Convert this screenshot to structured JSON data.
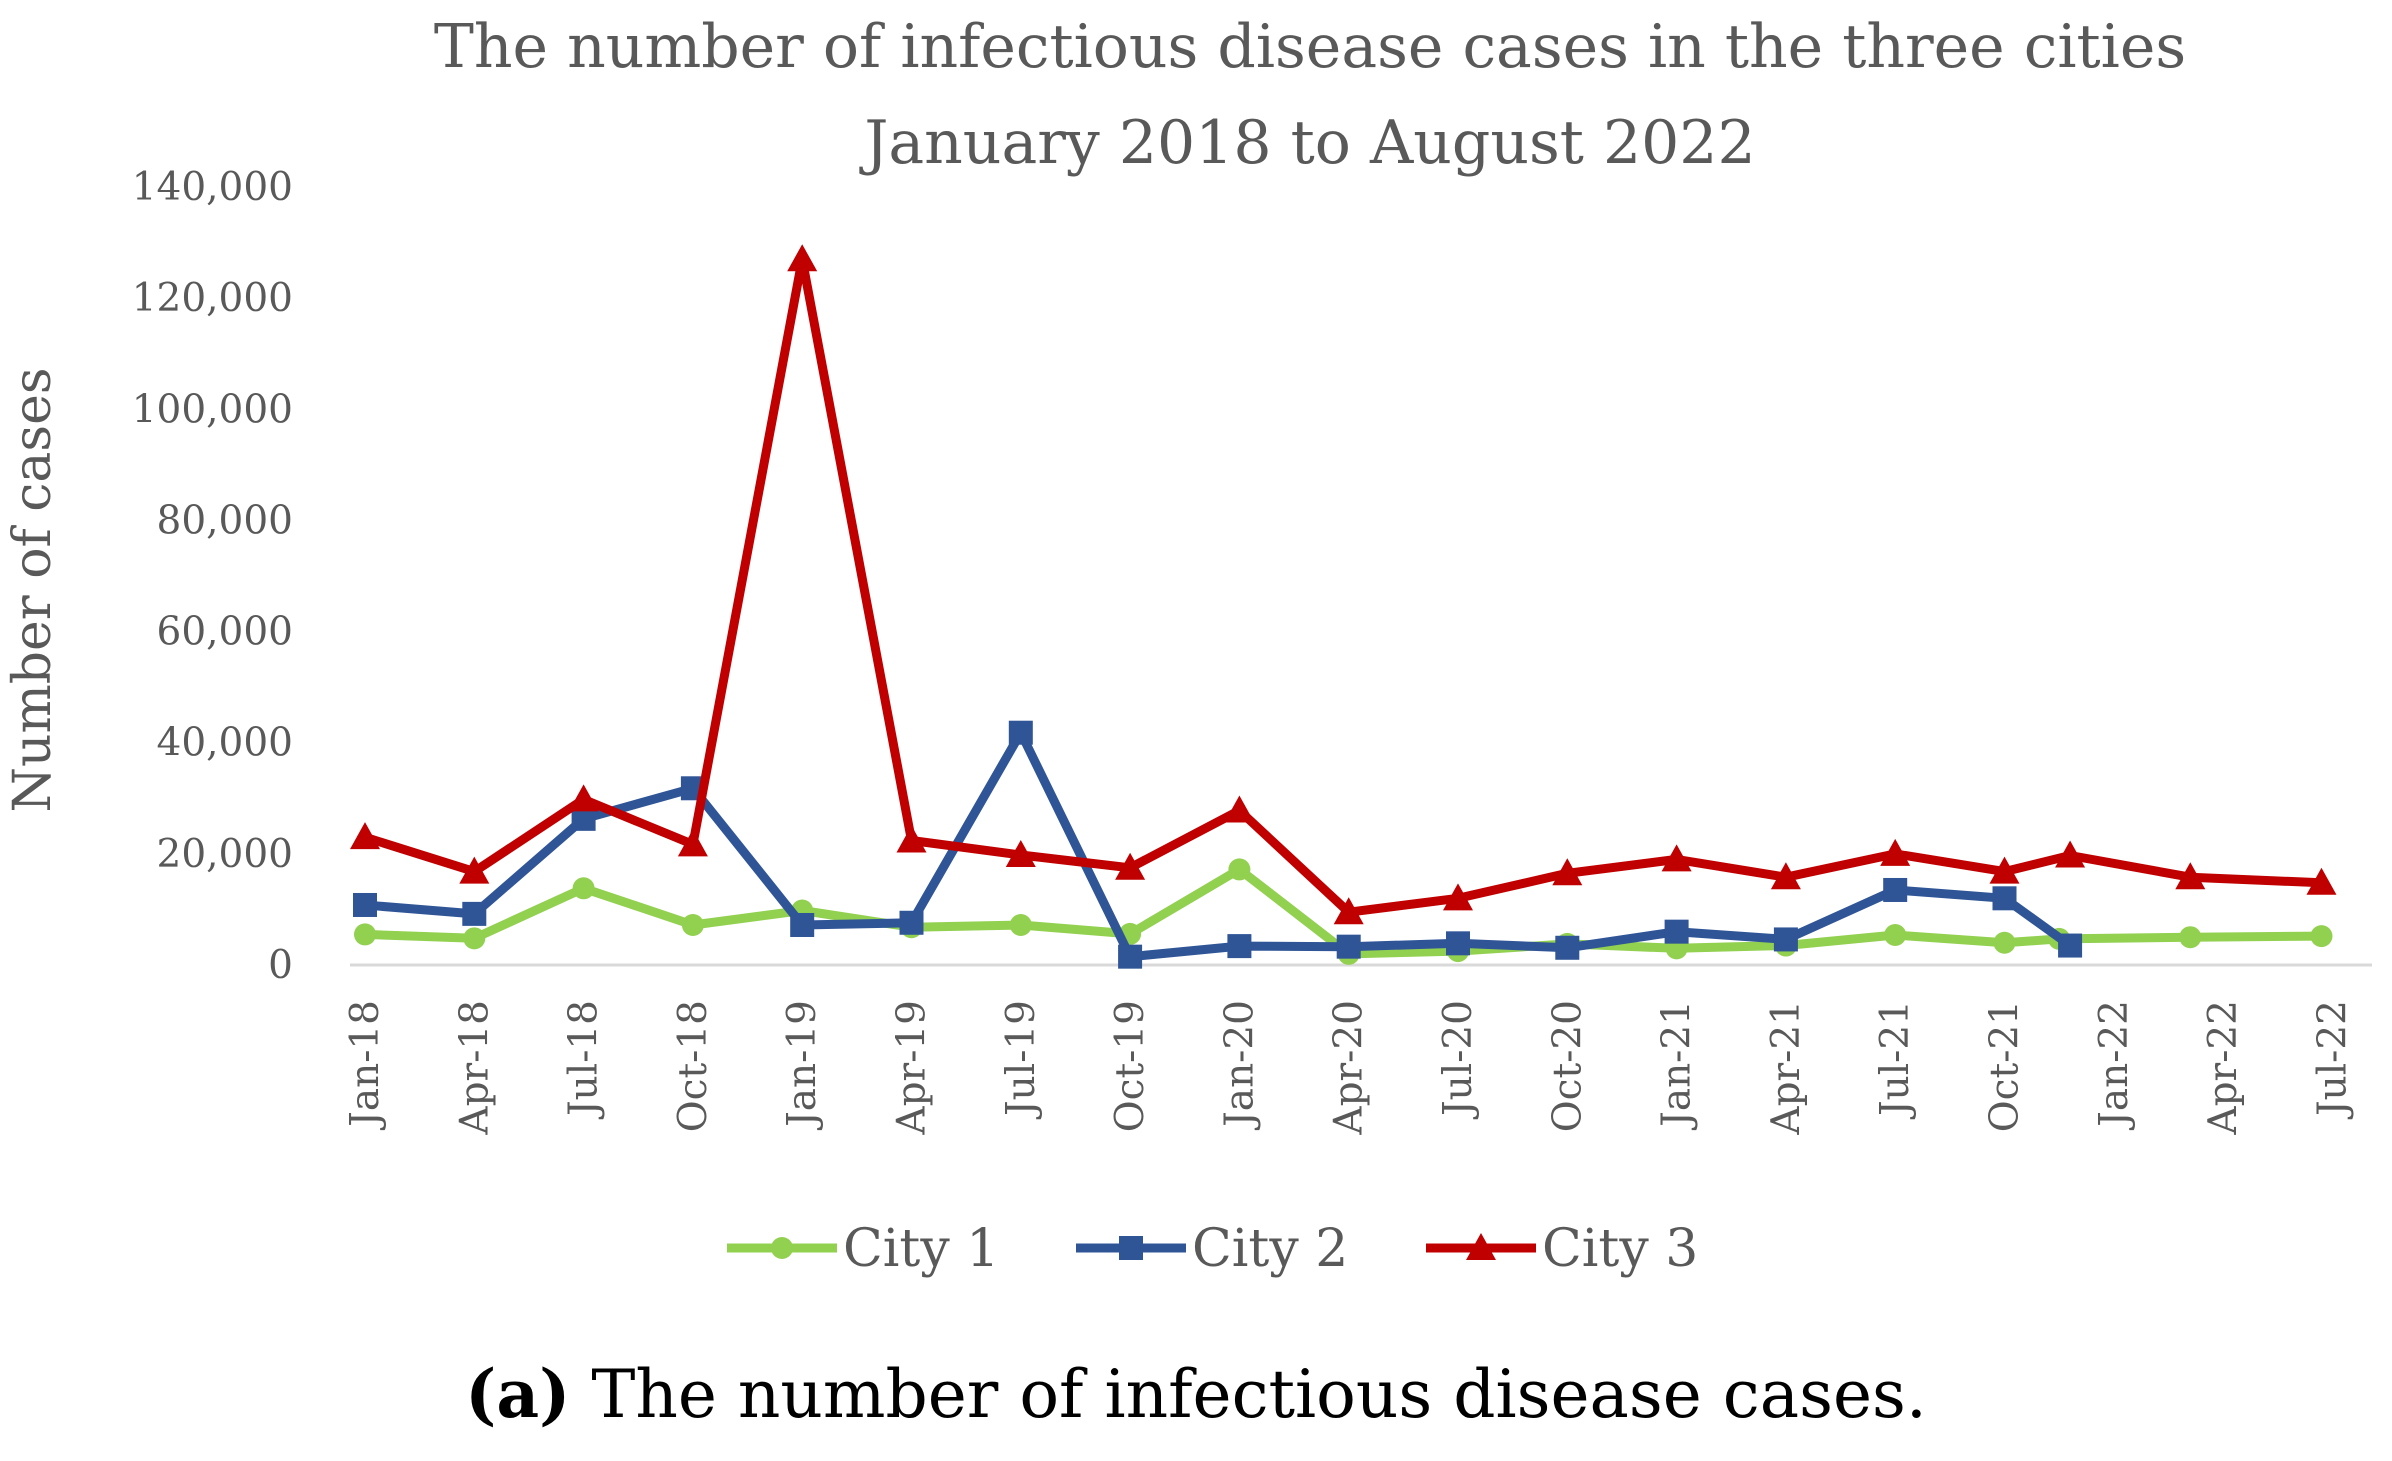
{
  "chart_data": {
    "type": "line",
    "title": [
      "The number of infectious disease cases in the three cities",
      "January 2018 to August 2022"
    ],
    "xlabel": "",
    "ylabel": "Number of cases",
    "ylim": [
      0,
      140000
    ],
    "y_ticks": [
      0,
      20000,
      40000,
      60000,
      80000,
      100000,
      120000,
      140000
    ],
    "y_tick_labels": [
      "0",
      "20,000",
      "40,000",
      "60,000",
      "80,000",
      "100,000",
      "120,000",
      "140,000"
    ],
    "x_tick_labels": [
      "Jan-18",
      "Apr-18",
      "Jul-18",
      "Oct-18",
      "Jan-19",
      "Apr-19",
      "Jul-19",
      "Oct-19",
      "Jan-20",
      "Apr-20",
      "Jul-20",
      "Oct-20",
      "Jan-21",
      "Apr-21",
      "Jul-21",
      "Oct-21",
      "Jan-22",
      "Apr-22",
      "Jul-22"
    ],
    "legend_position": "bottom",
    "grid": false,
    "series": [
      {
        "name": "City 1",
        "color": "#92D050",
        "marker": "circle",
        "x": [
          0,
          1,
          2,
          3,
          4,
          5,
          6,
          7,
          8,
          9,
          10,
          11,
          12,
          13,
          14,
          15,
          15.5,
          16.7,
          17.9
        ],
        "values": [
          5500,
          4800,
          13800,
          7200,
          9800,
          6800,
          7200,
          5600,
          17200,
          2000,
          2500,
          3800,
          3000,
          3500,
          5400,
          4000,
          4700,
          5000,
          5200
        ]
      },
      {
        "name": "City 2",
        "color": "#2F5597",
        "marker": "square",
        "x": [
          0,
          1,
          2,
          3,
          4,
          5,
          6,
          7,
          8,
          9,
          10,
          11,
          12,
          13,
          14,
          15,
          15.6
        ],
        "values": [
          10800,
          9200,
          26300,
          31800,
          7200,
          7600,
          41800,
          1500,
          3400,
          3300,
          3900,
          3100,
          6000,
          4600,
          13500,
          12000,
          3500
        ]
      },
      {
        "name": "City 3",
        "color": "#C00000",
        "marker": "triangle",
        "x": [
          0,
          1,
          2,
          3,
          4,
          5,
          6,
          7,
          8,
          9,
          10,
          11,
          12,
          13,
          14,
          15,
          15.6,
          16.7,
          17.9
        ],
        "values": [
          23000,
          16800,
          29800,
          21700,
          127000,
          22400,
          19800,
          17500,
          27800,
          9500,
          12000,
          16500,
          19000,
          15800,
          20000,
          16800,
          19700,
          15800,
          14800
        ]
      }
    ]
  },
  "caption": {
    "label": "(a)",
    "text": " The number of infectious disease cases."
  }
}
